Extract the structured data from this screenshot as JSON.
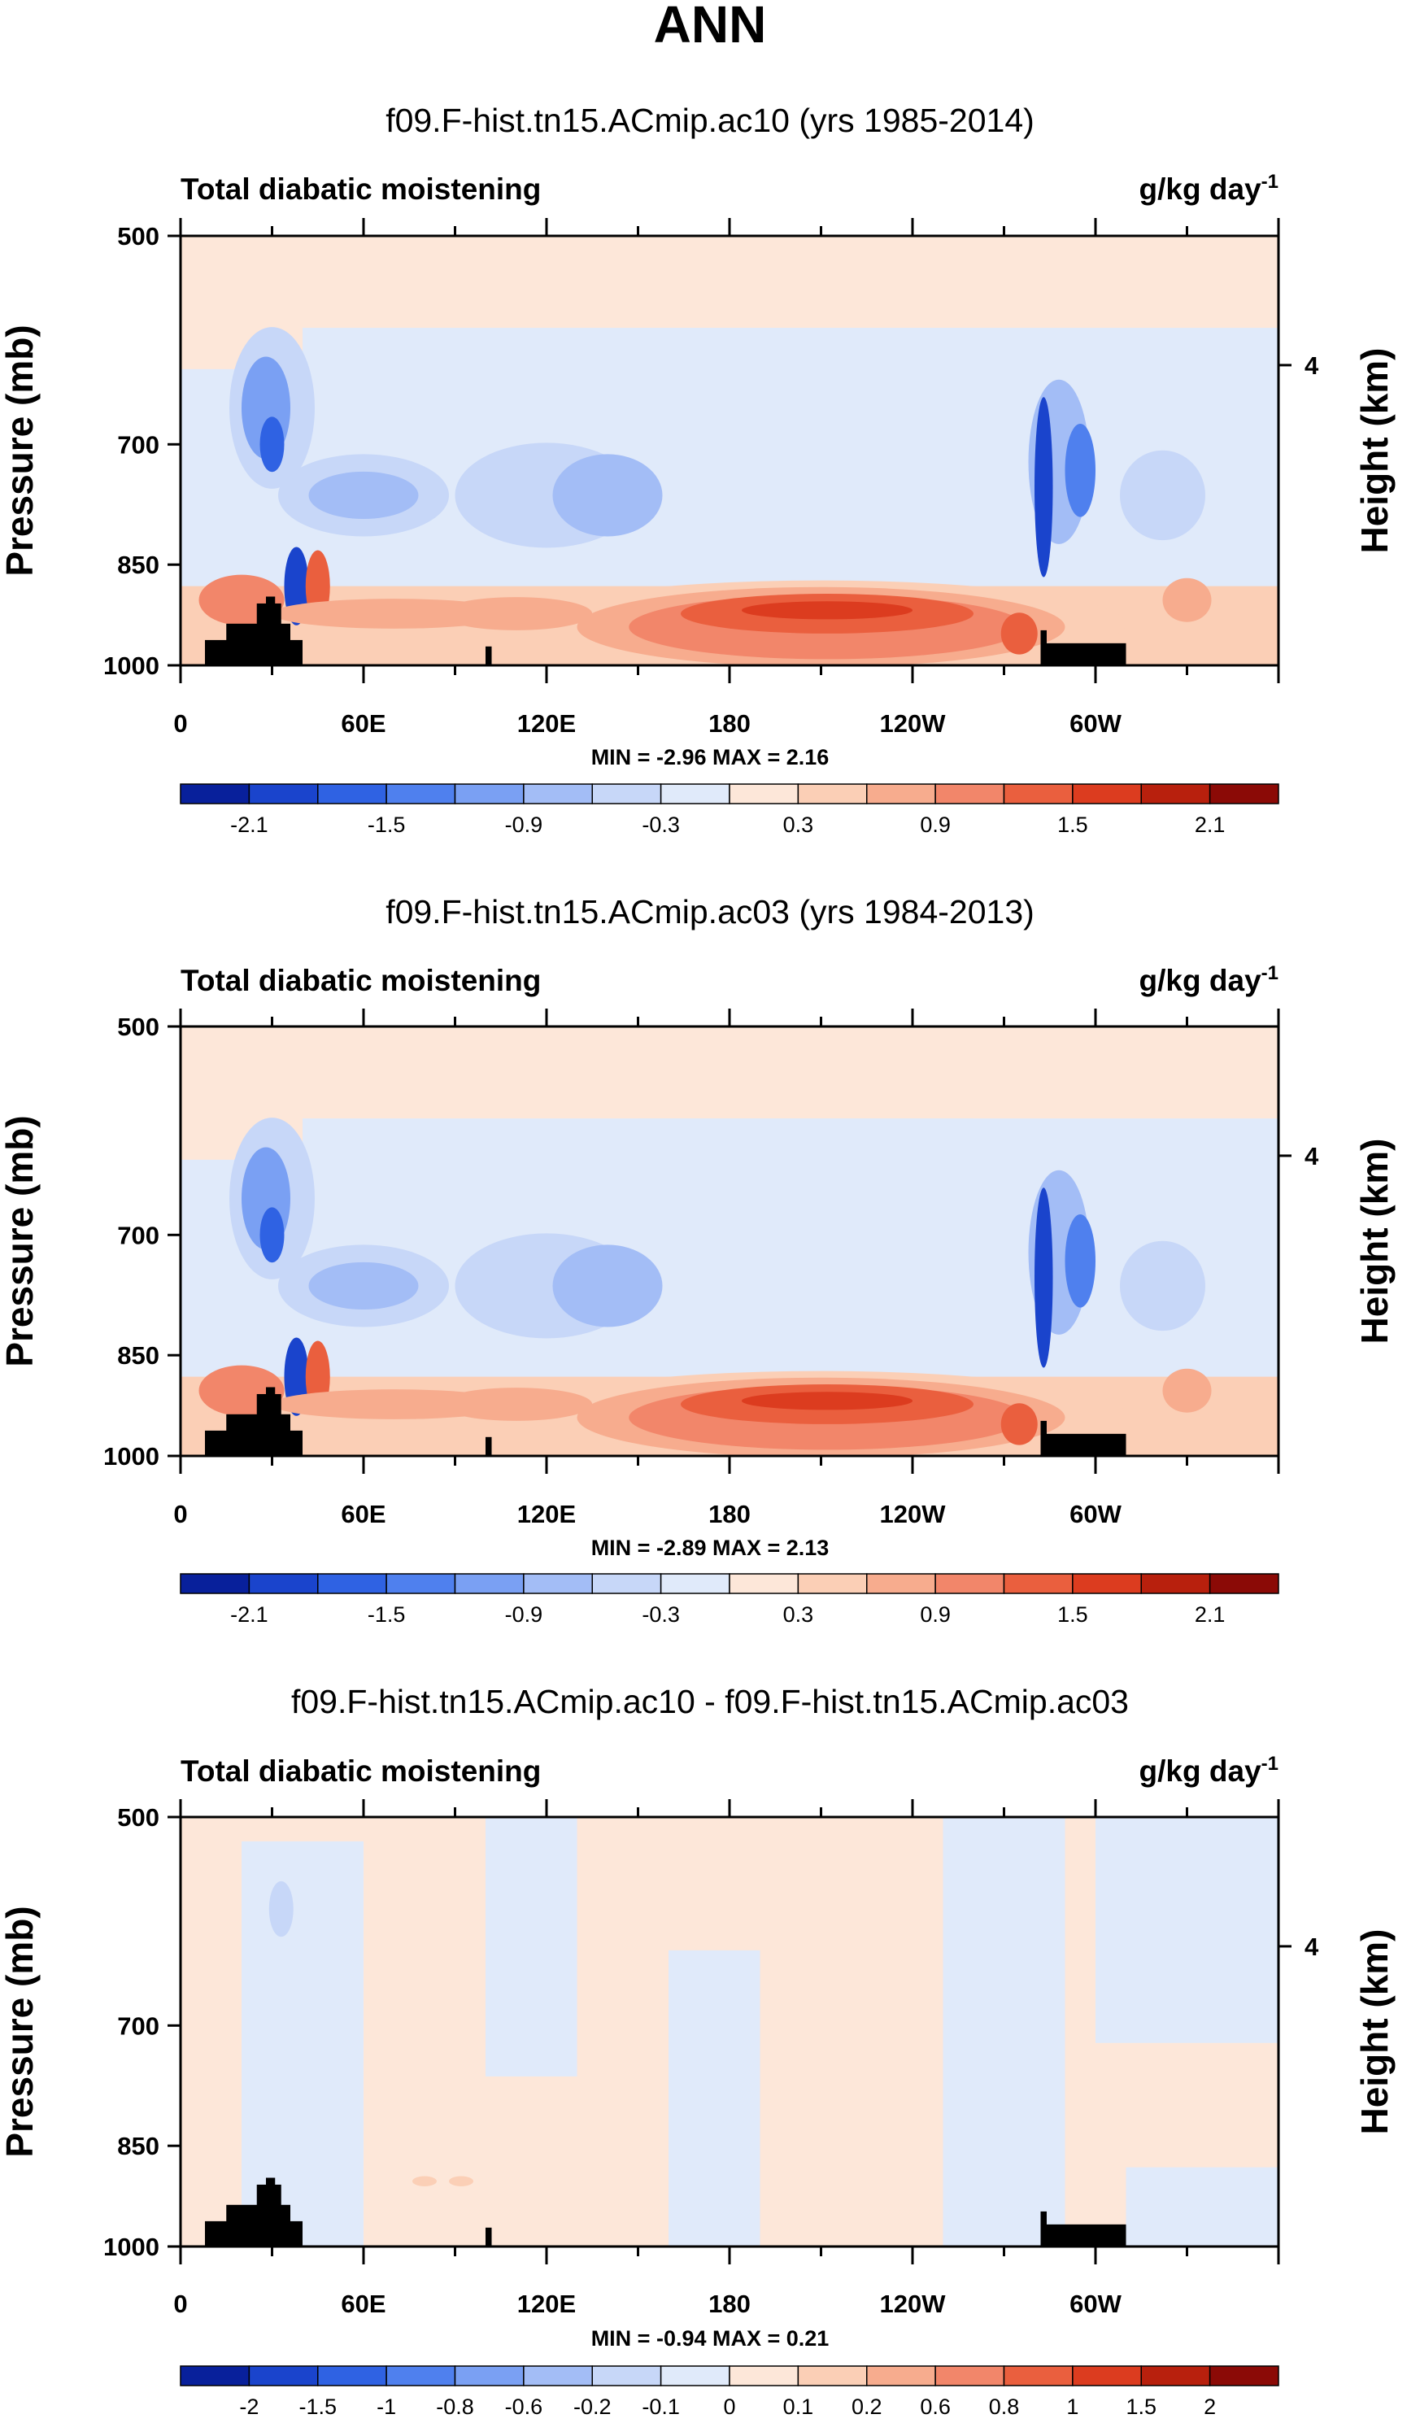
{
  "figure": {
    "title": "ANN"
  },
  "chart_data": [
    {
      "type": "contour",
      "title": "f09.F-hist.tn15.ACmip.ac10 (yrs 1985-2014)",
      "left_label": "Total diabatic moistening",
      "units_base": "g/kg day",
      "units_exp": "-1",
      "ylabel": "Pressure (mb)",
      "ylabel_right": "Height (km)",
      "yticks": [
        "500",
        "700",
        "850",
        "1000"
      ],
      "ytick_values": [
        500,
        700,
        850,
        1000
      ],
      "yticks_right": [
        "4"
      ],
      "xticks": [
        "0",
        "60E",
        "120E",
        "180",
        "120W",
        "60W"
      ],
      "xtick_values": [
        0,
        60,
        120,
        180,
        240,
        300
      ],
      "xlim": [
        0,
        360
      ],
      "ylim": [
        1000,
        500
      ],
      "stats": "MIN = -2.96  MAX =  2.16",
      "colorbar": {
        "levels": [
          -2.4,
          -2.1,
          -1.8,
          -1.5,
          -1.2,
          -0.9,
          -0.6,
          -0.3,
          0,
          0.3,
          0.6,
          0.9,
          1.2,
          1.5,
          1.8,
          2.1,
          2.4
        ],
        "labels": [
          "-2.1",
          "-1.5",
          "-0.9",
          "-0.3",
          "0.3",
          "0.9",
          "1.5",
          "2.1"
        ],
        "label_positions": [
          1,
          3,
          5,
          7,
          9,
          11,
          13,
          15
        ],
        "colors": [
          "#08209b",
          "#1a44cc",
          "#2f62e3",
          "#4f80ee",
          "#7aa0f3",
          "#a3bdf6",
          "#c7d7f8",
          "#e0eafa",
          "#fde7d9",
          "#fbcfb6",
          "#f7ac8e",
          "#f2866a",
          "#ea5f3e",
          "#dc3c1f",
          "#b8200d",
          "#8b0a06"
        ]
      },
      "terrain": "black"
    },
    {
      "type": "contour",
      "title": "f09.F-hist.tn15.ACmip.ac03 (yrs 1984-2013)",
      "left_label": "Total diabatic moistening",
      "units_base": "g/kg day",
      "units_exp": "-1",
      "ylabel": "Pressure (mb)",
      "ylabel_right": "Height (km)",
      "yticks": [
        "500",
        "700",
        "850",
        "1000"
      ],
      "ytick_values": [
        500,
        700,
        850,
        1000
      ],
      "yticks_right": [
        "4"
      ],
      "xticks": [
        "0",
        "60E",
        "120E",
        "180",
        "120W",
        "60W"
      ],
      "xtick_values": [
        0,
        60,
        120,
        180,
        240,
        300
      ],
      "xlim": [
        0,
        360
      ],
      "ylim": [
        1000,
        500
      ],
      "stats": "MIN = -2.89  MAX =  2.13",
      "colorbar": {
        "levels": [
          -2.4,
          -2.1,
          -1.8,
          -1.5,
          -1.2,
          -0.9,
          -0.6,
          -0.3,
          0,
          0.3,
          0.6,
          0.9,
          1.2,
          1.5,
          1.8,
          2.1,
          2.4
        ],
        "labels": [
          "-2.1",
          "-1.5",
          "-0.9",
          "-0.3",
          "0.3",
          "0.9",
          "1.5",
          "2.1"
        ],
        "label_positions": [
          1,
          3,
          5,
          7,
          9,
          11,
          13,
          15
        ],
        "colors": [
          "#08209b",
          "#1a44cc",
          "#2f62e3",
          "#4f80ee",
          "#7aa0f3",
          "#a3bdf6",
          "#c7d7f8",
          "#e0eafa",
          "#fde7d9",
          "#fbcfb6",
          "#f7ac8e",
          "#f2866a",
          "#ea5f3e",
          "#dc3c1f",
          "#b8200d",
          "#8b0a06"
        ]
      },
      "terrain": "black"
    },
    {
      "type": "contour",
      "title": "f09.F-hist.tn15.ACmip.ac10 - f09.F-hist.tn15.ACmip.ac03",
      "left_label": "Total diabatic moistening",
      "units_base": "g/kg day",
      "units_exp": "-1",
      "ylabel": "Pressure (mb)",
      "ylabel_right": "Height (km)",
      "yticks": [
        "500",
        "700",
        "850",
        "1000"
      ],
      "ytick_values": [
        500,
        700,
        850,
        1000
      ],
      "yticks_right": [
        "4"
      ],
      "xticks": [
        "0",
        "60E",
        "120E",
        "180",
        "120W",
        "60W"
      ],
      "xtick_values": [
        0,
        60,
        120,
        180,
        240,
        300
      ],
      "xlim": [
        0,
        360
      ],
      "ylim": [
        1000,
        500
      ],
      "stats": "MIN = -0.94  MAX =  0.21",
      "colorbar": {
        "levels": [
          -3,
          -2,
          -1.5,
          -1,
          -0.8,
          -0.6,
          -0.2,
          -0.1,
          0,
          0.1,
          0.2,
          0.6,
          0.8,
          1,
          1.5,
          2,
          3
        ],
        "labels": [
          "-2",
          "-1.5",
          "-1",
          "-0.8",
          "-0.6",
          "-0.2",
          "-0.1",
          "0",
          "0.1",
          "0.2",
          "0.6",
          "0.8",
          "1",
          "1.5",
          "2"
        ],
        "label_positions": [
          1,
          2,
          3,
          4,
          5,
          6,
          7,
          8,
          9,
          10,
          11,
          12,
          13,
          14,
          15
        ],
        "colors": [
          "#08209b",
          "#1a44cc",
          "#2f62e3",
          "#4f80ee",
          "#7aa0f3",
          "#a3bdf6",
          "#c7d7f8",
          "#e0eafa",
          "#fde7d9",
          "#fbcfb6",
          "#f7ac8e",
          "#f2866a",
          "#ea5f3e",
          "#dc3c1f",
          "#b8200d",
          "#8b0a06"
        ]
      },
      "terrain": "black"
    }
  ]
}
